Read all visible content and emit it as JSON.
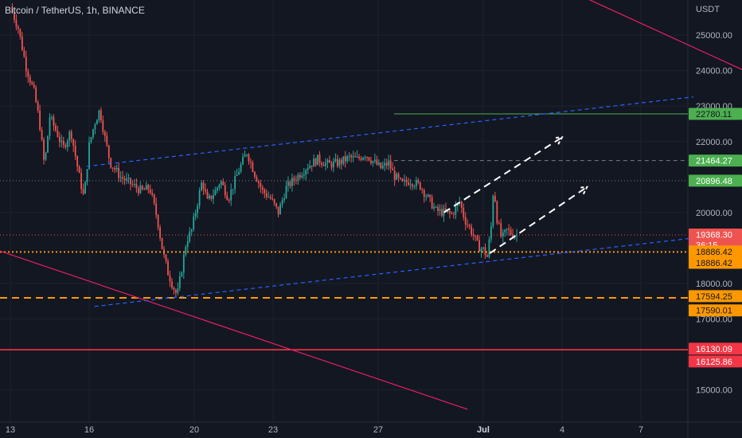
{
  "header": {
    "symbol": "Bitcoin / TetherUS, 1h, BINANCE",
    "currency": "USDT"
  },
  "colors": {
    "background": "#131722",
    "grid": "#1e222d",
    "up": "#26a69a",
    "down": "#ef5350",
    "axis_text": "#b2b5be",
    "trend_red": "#e91e63",
    "channel_blue": "#2962ff",
    "orange": "#ff9800",
    "green": "#4caf50",
    "red_line": "#f23645",
    "white": "#ffffff"
  },
  "chart_data": {
    "type": "candlestick",
    "title": "Bitcoin / TetherUS, 1h, BINANCE",
    "ylabel": "USDT",
    "x_range": [
      0,
      26
    ],
    "ylim": [
      14000,
      26000
    ],
    "grid": true,
    "x_ticks": [
      {
        "x": 0,
        "label": "13"
      },
      {
        "x": 3,
        "label": "16"
      },
      {
        "x": 7,
        "label": "20"
      },
      {
        "x": 10,
        "label": "23"
      },
      {
        "x": 14,
        "label": "27"
      },
      {
        "x": 18,
        "label": "Jul"
      },
      {
        "x": 21,
        "label": "4"
      },
      {
        "x": 24,
        "label": "7"
      }
    ],
    "y_ticks": [
      25000,
      24000,
      23000,
      22000,
      20000,
      18000,
      17000,
      15000
    ],
    "y_tick_labels": [
      "25000.00",
      "24000.00",
      "23000.00",
      "22000.00",
      "20000.00",
      "18000.00",
      "17000.00",
      "15000.00"
    ],
    "price_path": [
      [
        0.0,
        25800
      ],
      [
        0.3,
        25200
      ],
      [
        0.6,
        24100
      ],
      [
        0.9,
        23400
      ],
      [
        1.1,
        22600
      ],
      [
        1.3,
        21300
      ],
      [
        1.5,
        22700
      ],
      [
        1.8,
        22200
      ],
      [
        2.0,
        21800
      ],
      [
        2.3,
        22300
      ],
      [
        2.6,
        21100
      ],
      [
        2.8,
        20400
      ],
      [
        3.0,
        21900
      ],
      [
        3.2,
        22500
      ],
      [
        3.4,
        22900
      ],
      [
        3.6,
        22100
      ],
      [
        3.8,
        21400
      ],
      [
        4.2,
        21000
      ],
      [
        4.6,
        20800
      ],
      [
        5.0,
        20600
      ],
      [
        5.3,
        20700
      ],
      [
        5.6,
        19800
      ],
      [
        5.8,
        18900
      ],
      [
        6.0,
        18300
      ],
      [
        6.2,
        17900
      ],
      [
        6.35,
        17650
      ],
      [
        6.5,
        18300
      ],
      [
        6.7,
        19200
      ],
      [
        6.9,
        19500
      ],
      [
        7.1,
        20200
      ],
      [
        7.3,
        20900
      ],
      [
        7.5,
        20300
      ],
      [
        7.8,
        20600
      ],
      [
        8.0,
        20900
      ],
      [
        8.3,
        20400
      ],
      [
        8.7,
        21200
      ],
      [
        9.0,
        21700
      ],
      [
        9.3,
        21100
      ],
      [
        9.6,
        20600
      ],
      [
        9.9,
        20400
      ],
      [
        10.2,
        20000
      ],
      [
        10.5,
        20700
      ],
      [
        10.9,
        21000
      ],
      [
        11.3,
        21300
      ],
      [
        11.7,
        21500
      ],
      [
        12.1,
        21350
      ],
      [
        12.5,
        21400
      ],
      [
        12.9,
        21550
      ],
      [
        13.2,
        21500
      ],
      [
        13.5,
        21650
      ],
      [
        13.8,
        21450
      ],
      [
        14.1,
        21250
      ],
      [
        14.4,
        21400
      ],
      [
        14.6,
        21050
      ],
      [
        14.9,
        20800
      ],
      [
        15.2,
        20900
      ],
      [
        15.6,
        20750
      ],
      [
        15.9,
        20400
      ],
      [
        16.2,
        20050
      ],
      [
        16.5,
        20000
      ],
      [
        16.8,
        19950
      ],
      [
        17.1,
        20300
      ],
      [
        17.3,
        19800
      ],
      [
        17.6,
        19400
      ],
      [
        17.8,
        19050
      ],
      [
        18.0,
        18950
      ],
      [
        18.15,
        18750
      ],
      [
        18.3,
        19600
      ],
      [
        18.4,
        20850
      ],
      [
        18.5,
        19900
      ],
      [
        18.7,
        19250
      ],
      [
        18.9,
        19500
      ],
      [
        19.1,
        19400
      ],
      [
        19.3,
        19368
      ]
    ],
    "horizontal_levels": [
      {
        "price": 22780.11,
        "label": "22780.11",
        "style": "solid",
        "color": "#4caf50"
      },
      {
        "price": 21464.27,
        "label": "21464.27",
        "style": "dashed",
        "color": "#787b86"
      },
      {
        "price": 20896.48,
        "label": "20896.48",
        "style": "dotted",
        "color": "#787b86"
      },
      {
        "price": 19368.3,
        "label": "19368.30",
        "style": "dotted",
        "color": "#ef5350"
      },
      {
        "price": 18886.42,
        "label": "18886.42",
        "style": "dotted-thick",
        "color": "#ff9800"
      },
      {
        "price": 17594.25,
        "label": "17594.25",
        "style": "dashed-thick",
        "color": "#ff9800"
      },
      {
        "price": 16130.09,
        "label": "16130.09",
        "style": "solid",
        "color": "#f23645"
      }
    ],
    "price_tags": [
      {
        "price": 22780.11,
        "label": "22780.11",
        "bg": "#4caf50",
        "fg": "#131722"
      },
      {
        "price": 21464.27,
        "label": "21464.27",
        "bg": "#4caf50",
        "fg": "#ffffff"
      },
      {
        "price": 20896.48,
        "label": "20896.48",
        "bg": "#4caf50",
        "fg": "#ffffff"
      },
      {
        "price": 19368.3,
        "label": "19368.30",
        "sub": "36:15",
        "bg": "#ef5350",
        "fg": "#ffffff"
      },
      {
        "price": 18900,
        "label": "18886.42",
        "bg": "#ff9800",
        "fg": "#131722"
      },
      {
        "price": 18580,
        "label": "18886.42",
        "bg": "#ff9800",
        "fg": "#131722"
      },
      {
        "price": 17640,
        "label": "17594.25",
        "bg": "#ff9800",
        "fg": "#131722"
      },
      {
        "price": 17240,
        "label": "17590.01",
        "bg": "#ff9800",
        "fg": "#131722"
      },
      {
        "price": 16160,
        "label": "16130.09",
        "bg": "#f23645",
        "fg": "#ffffff"
      },
      {
        "price": 15800,
        "label": "16125.86",
        "bg": "#f23645",
        "fg": "#ffffff"
      }
    ],
    "trendlines": [
      {
        "from": [
          21.3,
          26250
        ],
        "to": [
          28,
          23980
        ],
        "style": "solid",
        "color": "#e91e63"
      },
      {
        "from": [
          -0.7,
          18990
        ],
        "to": [
          17.4,
          14450
        ],
        "style": "solid",
        "color": "#e91e63"
      },
      {
        "from": [
          2.9,
          21300
        ],
        "to": [
          26,
          23260
        ],
        "style": "dashed",
        "color": "#2962ff"
      },
      {
        "from": [
          3.2,
          17350
        ],
        "to": [
          26,
          19280
        ],
        "style": "dashed",
        "color": "#2962ff"
      }
    ],
    "arrows": [
      {
        "from": [
          16.5,
          20000
        ],
        "to": [
          21.0,
          22120
        ],
        "color": "#ffffff"
      },
      {
        "from": [
          18.25,
          18850
        ],
        "to": [
          21.95,
          20720
        ],
        "color": "#ffffff"
      }
    ]
  }
}
